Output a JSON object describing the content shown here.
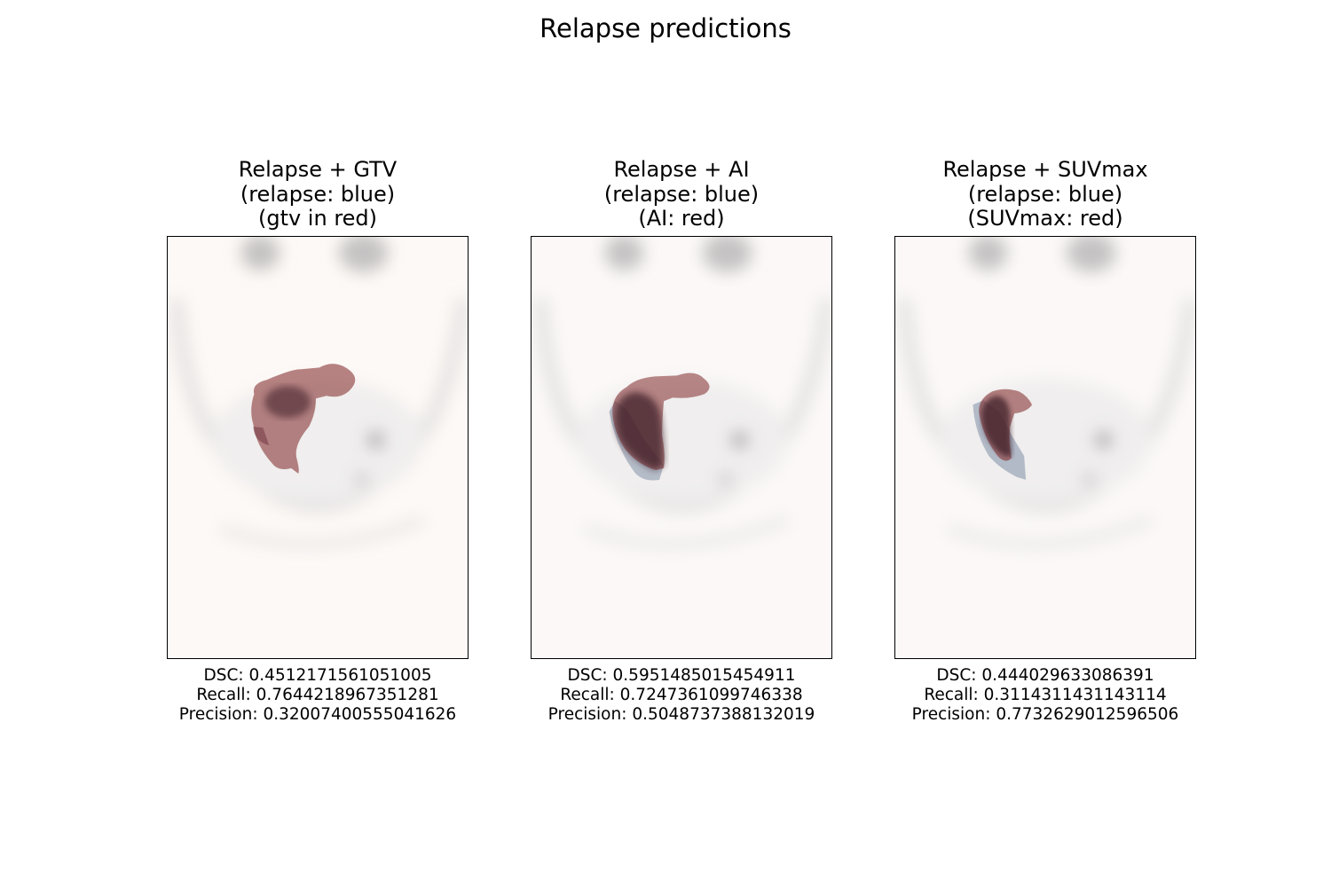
{
  "figure": {
    "title": "Relapse predictions"
  },
  "panels": [
    {
      "title_lines": [
        "Relapse + GTV",
        "(relapse: blue)",
        "(gtv in red)"
      ],
      "metrics": [
        "DSC: 0.4512171561051005",
        "Recall: 0.7644218967351281",
        "Precision: 0.32007400555041626"
      ],
      "background_color": "#fdf9f6",
      "overlay_color": "#8b3a3a"
    },
    {
      "title_lines": [
        "Relapse + AI",
        "(relapse: blue)",
        "(AI: red)"
      ],
      "metrics": [
        "DSC: 0.5951485015454911",
        "Recall: 0.7247361099746338",
        "Precision: 0.5048737388132019"
      ],
      "background_color": "#fcf8f8",
      "overlay_color": "#8b3a3a"
    },
    {
      "title_lines": [
        "Relapse + SUVmax",
        "(relapse: blue)",
        "(SUVmax: red)"
      ],
      "metrics": [
        "DSC: 0.444029633086391",
        "Recall: 0.3114311431143114",
        "Precision: 0.7732629012596506"
      ],
      "background_color": "#fcf8f8",
      "overlay_color": "#8b3a3a"
    }
  ],
  "colors": {
    "relapse_mask": "#9aa6b8",
    "overlap": "#3a1a28"
  }
}
